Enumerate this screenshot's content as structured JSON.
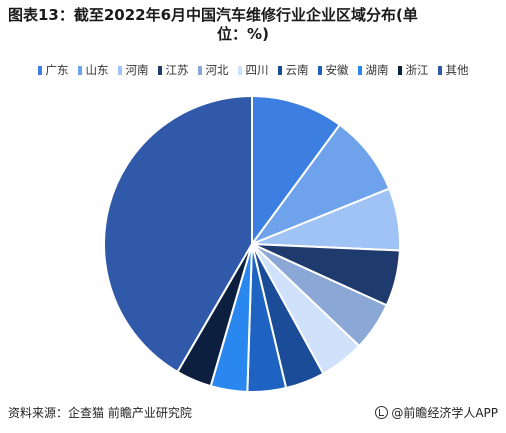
{
  "header": {
    "title_line1": "图表13：截至2022年6月中国汽车维修行业企业区域分布(单",
    "title_line2": "位：%)"
  },
  "footer": {
    "source": "资料来源：企查猫 前瞻产业研究院",
    "brand": "@前瞻经济学人APP"
  },
  "chart_data": {
    "type": "pie",
    "title": "图表13：截至2022年6月中国汽车维修行业企业区域分布(单位：%)",
    "categories": [
      "广东",
      "山东",
      "河南",
      "江苏",
      "河北",
      "四川",
      "云南",
      "安徽",
      "湖南",
      "浙江",
      "其他"
    ],
    "values": [
      10.1,
      8.8,
      6.8,
      6.1,
      5.3,
      4.9,
      4.3,
      4.2,
      4.0,
      3.9,
      41.6
    ],
    "colors": [
      "#3c7fe0",
      "#6ea2ea",
      "#9fc3f4",
      "#1f3a6d",
      "#8aa7d6",
      "#cfe1fb",
      "#1b4c98",
      "#1e62c2",
      "#2a87ef",
      "#0d1f3f",
      "#3059a9"
    ],
    "unit": "%",
    "start_angle": "12 o'clock",
    "direction": "clockwise",
    "legend_position": "top"
  }
}
